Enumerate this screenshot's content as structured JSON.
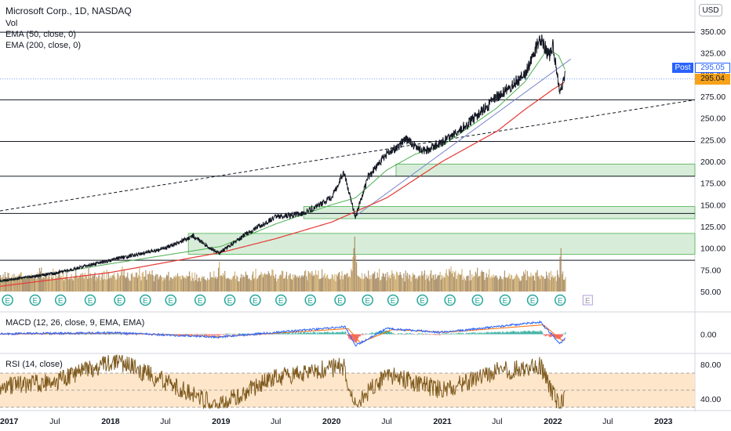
{
  "header": {
    "symbol_title": "Microsoft Corp., 1D, NASDAQ",
    "vol_label": "Vol",
    "ema50_label": "EMA (50, close, 0)",
    "ema200_label": "EMA (200, close, 0)",
    "currency_button": "USD"
  },
  "price_badges": {
    "post_label": "Post",
    "post_value": "295.05",
    "last_value": "295.04"
  },
  "indicators": {
    "macd_label": "MACD (12, 26, close, 9, EMA, EMA)",
    "rsi_label": "RSI (14, close)"
  },
  "colors": {
    "price": "#131722",
    "ema50": "#4caf50",
    "ema200": "#e53935",
    "volume": "#c8a15a",
    "zone_fill": "#c8e6c9",
    "zone_border": "#4caf50",
    "macd_line": "#2962ff",
    "signal_line": "#ff6d00",
    "rsi_line": "#7e5a1e",
    "rsi_band": "#fde0bd",
    "earnings_badge": "#26a69a",
    "post_badge": "#2962ff",
    "last_badge": "#f7a21b"
  },
  "chart_data": [
    {
      "type": "line",
      "name": "price",
      "x_tick_labels": [
        "2017",
        "Jul",
        "2018",
        "Jul",
        "2019",
        "Jul",
        "2020",
        "Jul",
        "2021",
        "Jul",
        "2022",
        "Jul",
        "2023"
      ],
      "y_tick_labels": [
        "350.00",
        "325.00",
        "300.00",
        "275.00",
        "250.00",
        "225.00",
        "200.00",
        "175.00",
        "150.00",
        "125.00",
        "100.00",
        "75.00",
        "50.00"
      ],
      "ylim": [
        38,
        362
      ],
      "xlim": [
        "2017-01-01",
        "2023-04-15"
      ],
      "series": [
        {
          "name": "MSFT",
          "x": [
            "2017-01-01",
            "2017-07-01",
            "2018-01-01",
            "2018-07-01",
            "2018-10-01",
            "2018-12-24",
            "2019-04-01",
            "2019-07-01",
            "2019-10-01",
            "2020-01-01",
            "2020-02-10",
            "2020-03-20",
            "2020-05-01",
            "2020-07-01",
            "2020-09-01",
            "2020-11-01",
            "2021-01-01",
            "2021-04-01",
            "2021-07-01",
            "2021-10-01",
            "2021-11-20",
            "2021-12-20",
            "2022-01-01",
            "2022-01-24",
            "2022-02-10"
          ],
          "values": [
            62,
            71,
            86,
            100,
            114,
            94,
            118,
            136,
            140,
            158,
            188,
            136,
            182,
            208,
            225,
            212,
            222,
            245,
            275,
            300,
            342,
            322,
            335,
            277,
            300
          ]
        }
      ],
      "ema50": {
        "x": [
          "2017-01-01",
          "2018-01-01",
          "2019-01-01",
          "2019-07-01",
          "2020-01-01",
          "2020-03-20",
          "2020-07-01",
          "2020-10-01",
          "2021-01-01",
          "2021-07-01",
          "2021-10-01",
          "2021-12-15",
          "2022-01-20",
          "2022-02-10"
        ],
        "values": [
          61,
          82,
          102,
          128,
          150,
          158,
          190,
          208,
          218,
          262,
          292,
          330,
          322,
          306
        ]
      },
      "ema200": {
        "x": [
          "2017-01-01",
          "2018-01-01",
          "2019-01-01",
          "2019-07-01",
          "2020-01-01",
          "2020-07-01",
          "2021-01-01",
          "2021-07-01",
          "2021-10-01",
          "2022-01-01",
          "2022-02-10"
        ],
        "values": [
          56,
          72,
          95,
          111,
          130,
          158,
          200,
          235,
          260,
          283,
          292
        ]
      },
      "horizontal_levels": [
        349,
        271,
        223,
        183,
        140,
        86
      ],
      "support_zones": [
        {
          "start": "2018-09-15",
          "end": "2023-04-15",
          "low": 93,
          "high": 117
        },
        {
          "start": "2019-10-01",
          "end": "2023-04-15",
          "low": 134,
          "high": 148
        },
        {
          "start": "2020-08-01",
          "end": "2023-04-15",
          "low": 183,
          "high": 197
        }
      ],
      "trend_lines": [
        {
          "style": "dashed",
          "x": [
            "2017-01-01",
            "2023-04-15"
          ],
          "values": [
            143,
            271
          ]
        },
        {
          "style": "solid",
          "x": [
            "2020-03-20",
            "2022-03-01"
          ],
          "values": [
            137,
            318
          ]
        }
      ],
      "earnings_markers": [
        "2017-01-26",
        "2017-04-27",
        "2017-07-20",
        "2017-10-26",
        "2018-01-31",
        "2018-04-26",
        "2018-07-19",
        "2018-10-24",
        "2019-01-30",
        "2019-04-24",
        "2019-07-18",
        "2019-10-23",
        "2020-01-29",
        "2020-04-29",
        "2020-07-22",
        "2020-10-27",
        "2021-01-26",
        "2021-04-27",
        "2021-07-27",
        "2021-10-26",
        "2022-01-25"
      ],
      "upcoming_earnings_marker": "2022-04-26",
      "upcoming_earnings_label": "E",
      "earnings_label": "E",
      "post_price": 295.05,
      "last_price": 295.04
    },
    {
      "type": "bar",
      "name": "volume",
      "description_units": "relative volume 0-1",
      "x": [
        "2017-01-01",
        "2018-02-06",
        "2018-12-24",
        "2020-03-12",
        "2020-03-16",
        "2020-03-20",
        "2021-01-27",
        "2022-01-25"
      ],
      "values": [
        0.3,
        0.55,
        0.65,
        0.95,
        1.0,
        0.8,
        0.55,
        0.95
      ]
    },
    {
      "type": "line",
      "name": "macd",
      "y_tick_labels": [
        "0.00"
      ],
      "ylim": [
        -18,
        18
      ],
      "series": [
        {
          "name": "MACD",
          "x": [
            "2017-01-01",
            "2018-01-15",
            "2018-12-24",
            "2020-02-15",
            "2020-03-20",
            "2020-07-01",
            "2021-01-01",
            "2021-11-20",
            "2022-01-25",
            "2022-02-10"
          ],
          "values": [
            0.5,
            1.5,
            -3,
            8,
            -12,
            6,
            2,
            13,
            -10,
            -4
          ]
        },
        {
          "name": "Signal",
          "x": [
            "2017-01-01",
            "2018-01-20",
            "2019-01-05",
            "2020-02-25",
            "2020-04-05",
            "2020-07-20",
            "2021-01-10",
            "2021-12-01",
            "2022-02-01",
            "2022-02-10"
          ],
          "values": [
            0.3,
            1.2,
            -2.5,
            6,
            -9,
            5,
            2,
            10,
            -7,
            -6
          ]
        }
      ]
    },
    {
      "type": "line",
      "name": "rsi",
      "y_tick_labels": [
        "80.00",
        "40.00"
      ],
      "ylim": [
        28,
        92
      ],
      "band": [
        30,
        70
      ],
      "series": [
        {
          "name": "RSI",
          "x": [
            "2017-01-01",
            "2017-07-01",
            "2018-01-20",
            "2018-12-24",
            "2019-07-01",
            "2020-02-10",
            "2020-03-16",
            "2020-07-01",
            "2021-01-01",
            "2021-07-01",
            "2021-11-20",
            "2022-01-25",
            "2022-02-10"
          ],
          "values": [
            55,
            60,
            85,
            32,
            65,
            78,
            33,
            68,
            50,
            72,
            78,
            30,
            45
          ]
        }
      ]
    }
  ]
}
